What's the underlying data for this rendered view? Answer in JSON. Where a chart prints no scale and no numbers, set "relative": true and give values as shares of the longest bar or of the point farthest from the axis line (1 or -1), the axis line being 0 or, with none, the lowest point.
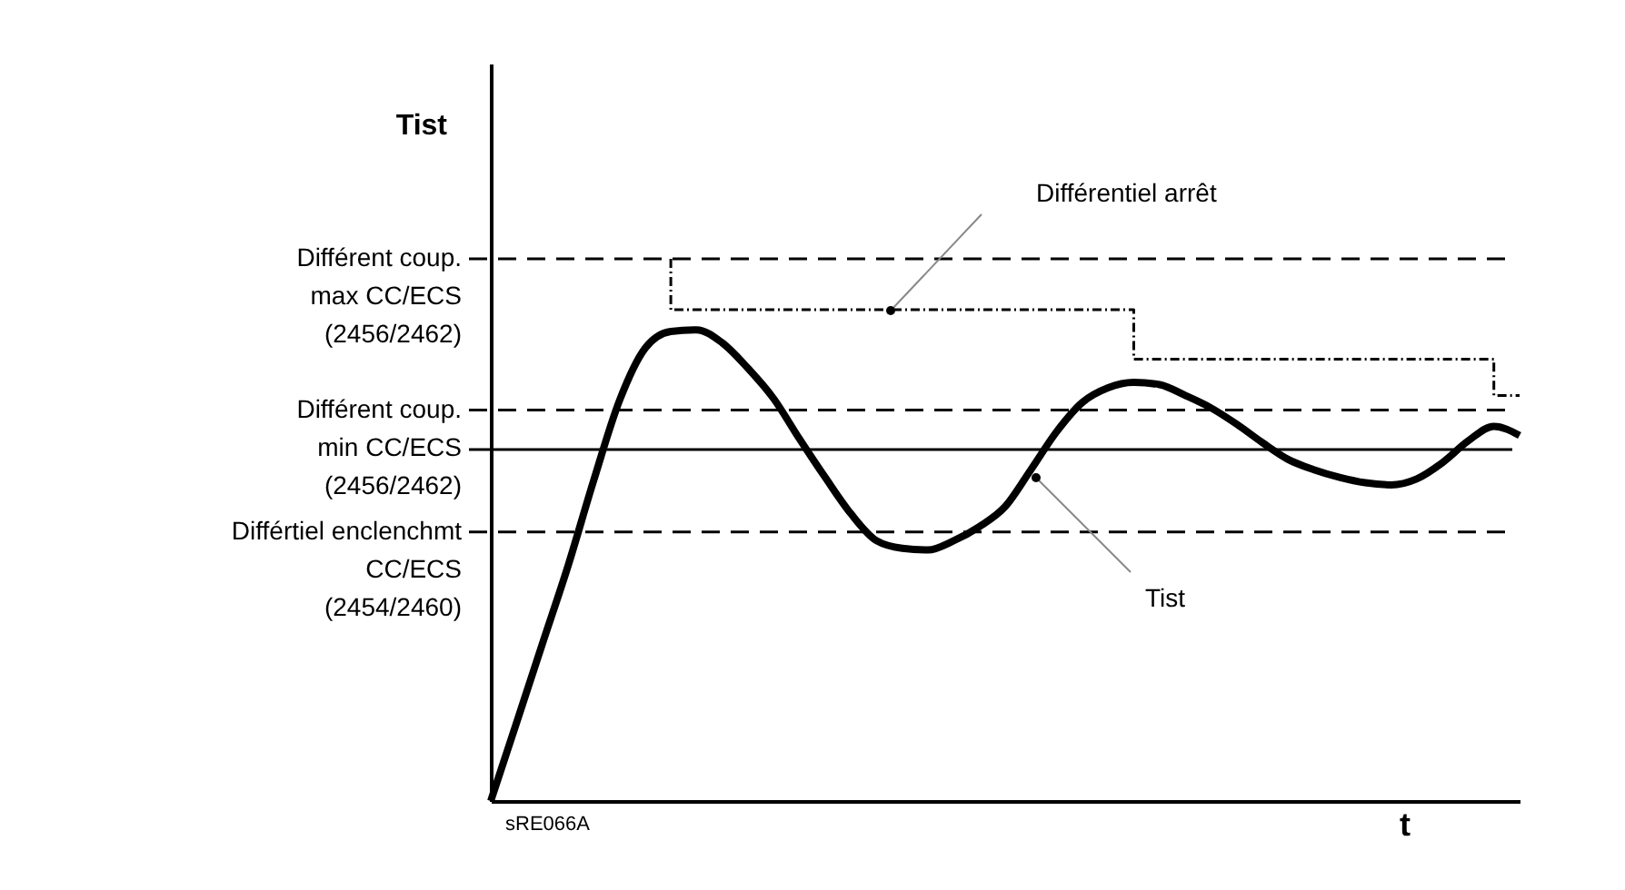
{
  "chart_data": {
    "type": "line",
    "relative": true,
    "xlabel": "t",
    "ylabel": "Tist",
    "tick_labels": false,
    "categories": [
      null,
      null,
      null,
      null,
      null,
      null,
      null,
      null,
      null,
      null,
      null,
      null,
      null,
      null,
      null,
      null,
      null,
      null,
      null,
      null,
      null,
      null,
      null,
      null,
      null,
      null,
      null,
      null,
      null,
      null,
      null,
      null,
      null,
      null,
      null,
      null,
      null,
      null,
      null,
      null,
      null
    ],
    "series": [
      {
        "color": "#000000",
        "line_style": "solid",
        "values": [
          0,
          0.144,
          0.289,
          0.433,
          0.591,
          0.738,
          0.835,
          0.866,
          0.869,
          0.845,
          0.798,
          0.742,
          0.668,
          0.597,
          0.53,
          0.48,
          0.466,
          0.463,
          0.48,
          0.506,
          0.543,
          0.611,
          0.681,
          0.735,
          0.762,
          0.772,
          0.768,
          0.748,
          0.725,
          0.695,
          0.661,
          0.63,
          0.611,
          0.597,
          0.587,
          0.583,
          0.594,
          0.624,
          0.664,
          0.691,
          0.674
        ]
      },
      {
        "type": "step",
        "color": "#000000",
        "line_style": "dotted",
        "values": [
          null,
          null,
          null,
          null,
          null,
          null,
          null,
          1.0,
          0.906,
          0.906,
          0.906,
          0.906,
          0.906,
          0.906,
          0.906,
          0.906,
          0.906,
          0.906,
          0.906,
          0.906,
          0.906,
          0.906,
          0.906,
          0.906,
          0.906,
          0.906,
          0.815,
          0.815,
          0.815,
          0.815,
          0.815,
          0.815,
          0.815,
          0.815,
          0.815,
          0.815,
          0.815,
          0.815,
          0.815,
          0.815,
          0.748
        ]
      }
    ],
    "ref_lines": [
      {
        "axis": "y",
        "value": 1.0,
        "label": "Différent coup.\nmax CC/ECS\n(2456/2462)",
        "line_style": "dashed",
        "color": "#000000"
      },
      {
        "axis": "y",
        "value": 0.721,
        "label": "Différent coup.\nmin CC/ECS\n(2456/2462)",
        "line_style": "dashed",
        "color": "#000000"
      },
      {
        "axis": "y",
        "value": 0.648,
        "line_style": "solid",
        "color": "#000000"
      },
      {
        "axis": "y",
        "value": 0.496,
        "label": "Différtiel enclenchmt\nCC/ECS\n(2454/2460)",
        "line_style": "dashed",
        "color": "#000000"
      }
    ],
    "annotations": [
      "Différentiel arrêt",
      "Tist",
      "sRE066A"
    ]
  }
}
